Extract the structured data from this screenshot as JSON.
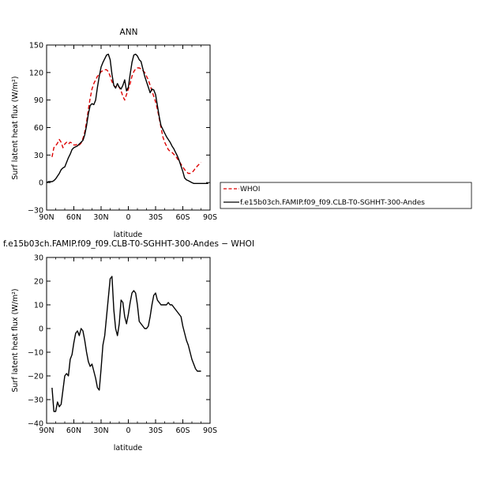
{
  "chart_data": [
    {
      "type": "line",
      "title": "ANN",
      "xlabel": "latitude",
      "ylabel": "Surf latent heat flux (W/m²)",
      "xlim": [
        90,
        -90
      ],
      "ylim": [
        -30,
        150
      ],
      "x_ticks": [
        90,
        60,
        30,
        0,
        -30,
        -60,
        -90
      ],
      "x_tick_labels": [
        "90N",
        "60N",
        "30N",
        "0",
        "30S",
        "60S",
        "90S"
      ],
      "y_ticks": [
        -30,
        0,
        30,
        60,
        90,
        120,
        150
      ],
      "y_tick_labels": [
        "−30",
        "0",
        "30",
        "60",
        "90",
        "120",
        "150"
      ],
      "legend_position": "right of plot",
      "series": [
        {
          "name": "WHOI",
          "color": "#dd0000",
          "style": "dashed",
          "x": [
            84,
            82,
            80,
            78,
            76,
            74,
            72,
            70,
            68,
            66,
            64,
            62,
            60,
            58,
            56,
            54,
            52,
            50,
            48,
            46,
            44,
            42,
            40,
            38,
            36,
            34,
            32,
            30,
            28,
            26,
            24,
            22,
            20,
            18,
            16,
            14,
            12,
            10,
            8,
            6,
            4,
            2,
            0,
            -2,
            -4,
            -6,
            -8,
            -10,
            -12,
            -14,
            -16,
            -18,
            -20,
            -22,
            -24,
            -26,
            -28,
            -30,
            -32,
            -34,
            -36,
            -38,
            -40,
            -42,
            -44,
            -46,
            -48,
            -50,
            -52,
            -54,
            -56,
            -58,
            -60,
            -62,
            -64,
            -66,
            -68,
            -70,
            -72,
            -74,
            -76,
            -78,
            -80
          ],
          "y": [
            28,
            38,
            40,
            43,
            47,
            44,
            38,
            42,
            44,
            42,
            44,
            43,
            41,
            41,
            42,
            41,
            43,
            48,
            55,
            66,
            80,
            92,
            102,
            108,
            112,
            116,
            118,
            121,
            122,
            123,
            123,
            121,
            116,
            110,
            106,
            104,
            106,
            104,
            100,
            94,
            90,
            96,
            102,
            108,
            116,
            121,
            124,
            125,
            125,
            124,
            122,
            120,
            116,
            112,
            106,
            100,
            94,
            88,
            80,
            70,
            60,
            50,
            44,
            40,
            36,
            34,
            33,
            31,
            29,
            26,
            23,
            20,
            17,
            14,
            12,
            10,
            10,
            11,
            13,
            16,
            18,
            20,
            22
          ]
        },
        {
          "name": "f.e15b03ch.FAMIP.f09_f09.CLB-T0-SGHHT-300-Andes",
          "color": "#000000",
          "style": "solid",
          "x": [
            90,
            88,
            86,
            84,
            82,
            80,
            78,
            76,
            74,
            72,
            70,
            68,
            66,
            64,
            62,
            60,
            58,
            56,
            54,
            52,
            50,
            48,
            46,
            44,
            42,
            40,
            38,
            36,
            34,
            32,
            30,
            28,
            26,
            24,
            22,
            20,
            18,
            16,
            14,
            12,
            10,
            8,
            6,
            4,
            2,
            0,
            -2,
            -4,
            -6,
            -8,
            -10,
            -12,
            -14,
            -16,
            -18,
            -20,
            -22,
            -24,
            -26,
            -28,
            -30,
            -32,
            -34,
            -36,
            -38,
            -40,
            -42,
            -44,
            -46,
            -48,
            -50,
            -52,
            -54,
            -56,
            -58,
            -60,
            -62,
            -64,
            -66,
            -68,
            -70,
            -72,
            -74,
            -76,
            -78,
            -80,
            -82,
            -84,
            -86,
            -88
          ],
          "y": [
            0,
            1,
            1,
            1,
            2,
            4,
            7,
            10,
            14,
            16,
            17,
            22,
            27,
            31,
            36,
            38,
            39,
            40,
            42,
            44,
            46,
            52,
            62,
            75,
            84,
            86,
            85,
            90,
            104,
            116,
            126,
            131,
            135,
            139,
            140,
            134,
            118,
            106,
            103,
            108,
            104,
            102,
            106,
            112,
            100,
            104,
            118,
            131,
            139,
            140,
            138,
            134,
            132,
            124,
            116,
            110,
            104,
            98,
            102,
            101,
            96,
            84,
            72,
            62,
            58,
            54,
            50,
            47,
            44,
            40,
            37,
            33,
            29,
            24,
            18,
            12,
            5,
            3,
            2,
            1,
            0,
            -1,
            -1,
            -1,
            -1,
            -1,
            -1,
            -1,
            -1,
            -1
          ]
        }
      ]
    },
    {
      "type": "line",
      "title": "f.e15b03ch.FAMIP.f09_f09.CLB-T0-SGHHT-300-Andes − WHOI",
      "xlabel": "latitude",
      "ylabel": "Surf latent heat flux (W/m²)",
      "xlim": [
        90,
        -90
      ],
      "ylim": [
        -40,
        30
      ],
      "x_ticks": [
        90,
        60,
        30,
        0,
        -30,
        -60,
        -90
      ],
      "x_tick_labels": [
        "90N",
        "60N",
        "30N",
        "0",
        "30S",
        "60S",
        "90S"
      ],
      "y_ticks": [
        -40,
        -30,
        -20,
        -10,
        0,
        10,
        20,
        30
      ],
      "y_tick_labels": [
        "−40",
        "−30",
        "−20",
        "−10",
        "0",
        "10",
        "20",
        "30"
      ],
      "series": [
        {
          "color": "#000000",
          "style": "solid",
          "x": [
            84,
            82,
            80,
            78,
            76,
            74,
            72,
            70,
            68,
            66,
            64,
            62,
            60,
            58,
            56,
            54,
            52,
            50,
            48,
            46,
            44,
            42,
            40,
            38,
            36,
            34,
            32,
            30,
            28,
            26,
            24,
            22,
            20,
            18,
            16,
            14,
            12,
            10,
            8,
            6,
            4,
            2,
            0,
            -2,
            -4,
            -6,
            -8,
            -10,
            -12,
            -14,
            -16,
            -18,
            -20,
            -22,
            -24,
            -26,
            -28,
            -30,
            -32,
            -34,
            -36,
            -38,
            -40,
            -42,
            -44,
            -46,
            -48,
            -50,
            -52,
            -54,
            -56,
            -58,
            -60,
            -62,
            -64,
            -66,
            -68,
            -70,
            -72,
            -74,
            -76,
            -78,
            -80
          ],
          "y": [
            -25,
            -35,
            -35,
            -31,
            -33,
            -32,
            -26,
            -20,
            -19,
            -20,
            -13,
            -11,
            -6,
            -2,
            -1,
            -3,
            0,
            -1,
            -5,
            -10,
            -14,
            -16,
            -15,
            -18,
            -21,
            -25,
            -26,
            -17,
            -7,
            -3,
            5,
            13,
            21,
            22,
            8,
            0,
            -3,
            2,
            12,
            11,
            5,
            2,
            6,
            11,
            15,
            16,
            15,
            10,
            3,
            2,
            1,
            0,
            0,
            1,
            5,
            10,
            14,
            15,
            12,
            11,
            10,
            10,
            10,
            10,
            11,
            10,
            10,
            9,
            8,
            7,
            6,
            5,
            1,
            -2,
            -5,
            -7,
            -10,
            -13,
            -15,
            -17,
            -18,
            -18,
            -18
          ]
        }
      ]
    }
  ]
}
